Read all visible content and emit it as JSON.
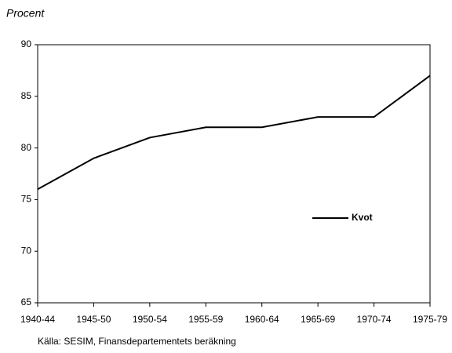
{
  "chart_data": {
    "type": "line",
    "y_label": "Procent",
    "source": "Källa: SESIM, Finansdepartementets beräkning",
    "categories": [
      "1940-44",
      "1945-50",
      "1950-54",
      "1955-59",
      "1960-64",
      "1965-69",
      "1970-74",
      "1975-79"
    ],
    "series": [
      {
        "name": "Kvot",
        "color": "#000000",
        "values": [
          76,
          79,
          81,
          82,
          82,
          83,
          83,
          87
        ]
      }
    ],
    "ylim": [
      65,
      90
    ],
    "yticks": [
      65,
      70,
      75,
      80,
      85,
      90
    ],
    "legend": "right",
    "grid": false
  }
}
